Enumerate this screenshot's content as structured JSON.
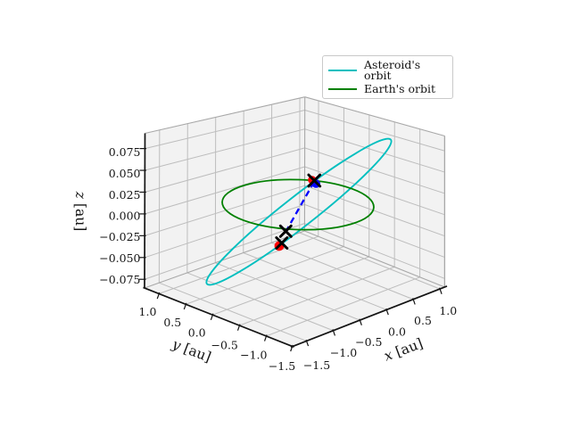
{
  "figure": {
    "background": "#ffffff"
  },
  "colors": {
    "asteroid_orbit": "#00bfbf",
    "earth_orbit": "#008000",
    "connector_line": "#0000ff",
    "marker_x": "#000000",
    "marker_red": "#ff0000",
    "marker_blue": "#0000ff",
    "pane": "#f2f2f2",
    "grid": "#bdbdbd",
    "box_edge": "#a8a8a8",
    "axis_line": "#141414"
  },
  "chart_data": {
    "type": "line",
    "projection": "3d",
    "title": "",
    "grid": true,
    "view": {
      "elev_deg": 30,
      "azim_deg": -60
    },
    "legend": {
      "position": "upper right"
    },
    "axes": {
      "x": {
        "var": "x",
        "unit": "[au]",
        "label": "x [au]",
        "tick_labels": [
          "−1.5",
          "−1.0",
          "−0.5",
          "0.0",
          "0.5",
          "1.0"
        ],
        "tick_values": [
          -1.5,
          -1.0,
          -0.5,
          0.0,
          0.5,
          1.0
        ],
        "lim": [
          -1.76,
          1.09
        ]
      },
      "y": {
        "var": "y",
        "unit": "[au]",
        "label": "y [au]",
        "tick_labels": [
          "1.0",
          "0.5",
          "0.0",
          "−0.5",
          "−1.0",
          "−1.5"
        ],
        "tick_values": [
          1.0,
          0.5,
          0.0,
          -0.5,
          -1.0,
          -1.5
        ],
        "lim": [
          1.27,
          -1.49
        ]
      },
      "z": {
        "var": "z",
        "unit": "[au]",
        "label": "z [au]",
        "tick_labels": [
          "−0.075",
          "−0.050",
          "−0.025",
          "0.000",
          "0.025",
          "0.050",
          "0.075"
        ],
        "tick_values": [
          -0.075,
          -0.05,
          -0.025,
          0.0,
          0.025,
          0.05,
          0.075
        ],
        "lim": [
          -0.085,
          0.0925
        ]
      }
    },
    "series": [
      {
        "name": "Asteroid's orbit",
        "color": "#00bfbf",
        "line_style": "solid",
        "shape": "ellipse",
        "center_au": [
          0,
          0,
          0
        ],
        "approx_extent_au": {
          "x": [
            -0.95,
            0.95
          ],
          "y": [
            -0.9,
            0.9
          ],
          "z": [
            -0.075,
            0.075
          ]
        }
      },
      {
        "name": "Earth's orbit",
        "color": "#008000",
        "line_style": "solid",
        "shape": "circle",
        "center_au": [
          0,
          0,
          0
        ],
        "radius_au": 1.0,
        "plane": "z=0"
      }
    ],
    "connector": {
      "color": "#0000ff",
      "line_style": "dashed",
      "from_au": [
        0.84,
        0.54,
        0.0
      ],
      "to_au": [
        -0.18,
        0.0,
        -0.03
      ]
    },
    "markers": [
      {
        "marker": "o",
        "color": "#ff0000",
        "approx_au": [
          0.86,
          0.57,
          0.0
        ]
      },
      {
        "marker": "o",
        "color": "#0000ff",
        "approx_au": [
          0.82,
          0.5,
          0.0
        ]
      },
      {
        "marker": "x",
        "color": "#000000",
        "approx_au": [
          0.84,
          0.54,
          0.0
        ]
      },
      {
        "marker": "x",
        "color": "#000000",
        "approx_au": [
          -0.18,
          0.0,
          -0.03
        ]
      },
      {
        "marker": "o",
        "color": "#ff0000",
        "approx_au": [
          -0.28,
          -0.08,
          -0.045
        ]
      },
      {
        "marker": "x",
        "color": "#000000",
        "approx_au": [
          -0.25,
          -0.05,
          -0.04
        ]
      }
    ]
  }
}
